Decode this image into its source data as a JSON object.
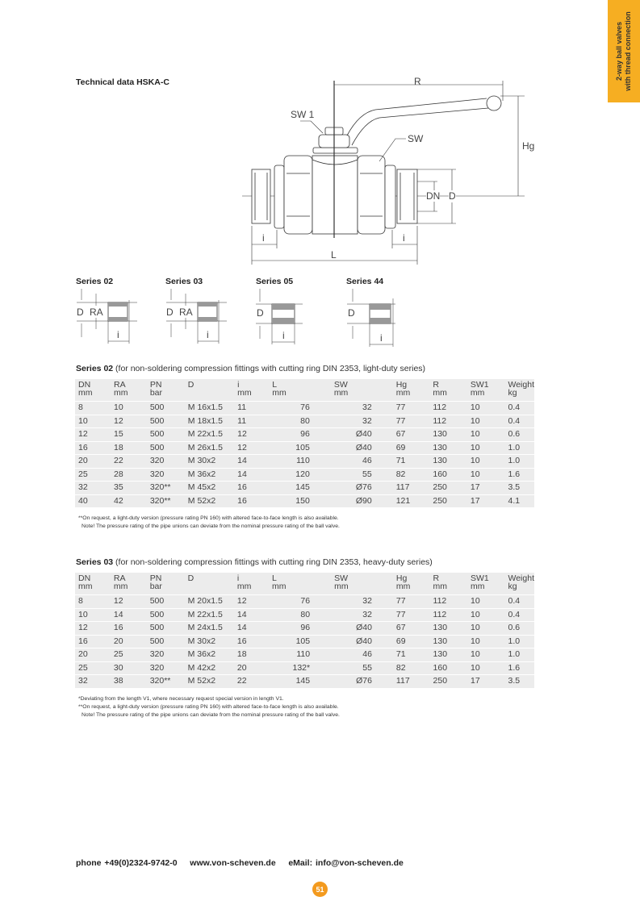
{
  "side_tab": {
    "line1": "2-way ball valves",
    "line2": "with thread connection",
    "color": "#f6ae22"
  },
  "heading": "Technical data  HSKA-C",
  "diagram_labels": {
    "R": "R",
    "SW1": "SW 1",
    "SW": "SW",
    "Hg": "Hg",
    "DN": "DN",
    "D": "D",
    "i": "i",
    "L": "L"
  },
  "series_diagrams": [
    {
      "title": "Series 02",
      "labels": [
        "D",
        "RA",
        "i"
      ]
    },
    {
      "title": "Series 03",
      "labels": [
        "D",
        "RA",
        "i"
      ]
    },
    {
      "title": "Series 05",
      "labels": [
        "D",
        "i"
      ]
    },
    {
      "title": "Series 44",
      "labels": [
        "D",
        "i"
      ]
    }
  ],
  "columns": [
    [
      "DN",
      "mm"
    ],
    [
      "RA",
      "mm"
    ],
    [
      "PN",
      "bar"
    ],
    [
      "D",
      ""
    ],
    [
      "i",
      "mm"
    ],
    [
      "L",
      "mm"
    ],
    [
      "SW",
      "mm"
    ],
    [
      "Hg",
      "mm"
    ],
    [
      "R",
      "mm"
    ],
    [
      "SW1",
      "mm"
    ],
    [
      "Weight",
      "kg"
    ]
  ],
  "series02": {
    "title_bold": "Series 02",
    "title_rest": " (for non-soldering compression fittings with cutting ring DIN 2353, light-duty series)",
    "rows": [
      [
        "8",
        "10",
        "500",
        "M 16x1.5",
        "11",
        "76",
        "32",
        "77",
        "112",
        "10",
        "0.4"
      ],
      [
        "10",
        "12",
        "500",
        "M 18x1.5",
        "11",
        "80",
        "32",
        "77",
        "112",
        "10",
        "0.4"
      ],
      [
        "12",
        "15",
        "500",
        "M 22x1.5",
        "12",
        "96",
        "Ø40",
        "67",
        "130",
        "10",
        "0.6"
      ],
      [
        "16",
        "18",
        "500",
        "M 26x1.5",
        "12",
        "105",
        "Ø40",
        "69",
        "130",
        "10",
        "1.0"
      ],
      [
        "20",
        "22",
        "320",
        "M 30x2",
        "14",
        "110",
        "46",
        "71",
        "130",
        "10",
        "1.0"
      ],
      [
        "25",
        "28",
        "320",
        "M 36x2",
        "14",
        "120",
        "55",
        "82",
        "160",
        "10",
        "1.6"
      ],
      [
        "32",
        "35",
        "320**",
        "M 45x2",
        "16",
        "145",
        "Ø76",
        "117",
        "250",
        "17",
        "3.5"
      ],
      [
        "40",
        "42",
        "320**",
        "M 52x2",
        "16",
        "150",
        "Ø90",
        "121",
        "250",
        "17",
        "4.1"
      ]
    ],
    "notes": [
      "**On request, a light-duty version (pressure rating PN 160) with altered face-to-face length is also available.",
      "Note! The pressure rating of the pipe unions can deviate from the nominal pressure rating of the ball valve."
    ]
  },
  "series03": {
    "title_bold": "Series 03",
    "title_rest": " (for non-soldering compression fittings with cutting ring DIN 2353, heavy-duty series)",
    "rows": [
      [
        "8",
        "12",
        "500",
        "M 20x1.5",
        "12",
        "76",
        "32",
        "77",
        "112",
        "10",
        "0.4"
      ],
      [
        "10",
        "14",
        "500",
        "M 22x1.5",
        "14",
        "80",
        "32",
        "77",
        "112",
        "10",
        "0.4"
      ],
      [
        "12",
        "16",
        "500",
        "M 24x1.5",
        "14",
        "96",
        "Ø40",
        "67",
        "130",
        "10",
        "0.6"
      ],
      [
        "16",
        "20",
        "500",
        "M 30x2",
        "16",
        "105",
        "Ø40",
        "69",
        "130",
        "10",
        "1.0"
      ],
      [
        "20",
        "25",
        "320",
        "M 36x2",
        "18",
        "110",
        "46",
        "71",
        "130",
        "10",
        "1.0"
      ],
      [
        "25",
        "30",
        "320",
        "M 42x2",
        "20",
        "132*",
        "55",
        "82",
        "160",
        "10",
        "1.6"
      ],
      [
        "32",
        "38",
        "320**",
        "M 52x2",
        "22",
        "145",
        "Ø76",
        "117",
        "250",
        "17",
        "3.5"
      ]
    ],
    "notes": [
      "*Deviating from the length V1, where necessary request special version in length V1.",
      "**On request, a light-duty version (pressure rating PN 160) with altered face-to-face length is also available.",
      "Note! The pressure rating of the pipe unions can deviate from the nominal pressure rating of the ball valve."
    ]
  },
  "footer": {
    "phone": "phone +49(0)2324-9742-0",
    "web": "www.von-scheven.de",
    "email": "eMail: info@von-scheven.de",
    "page_number": "51",
    "page_color": "#f39a1e"
  }
}
